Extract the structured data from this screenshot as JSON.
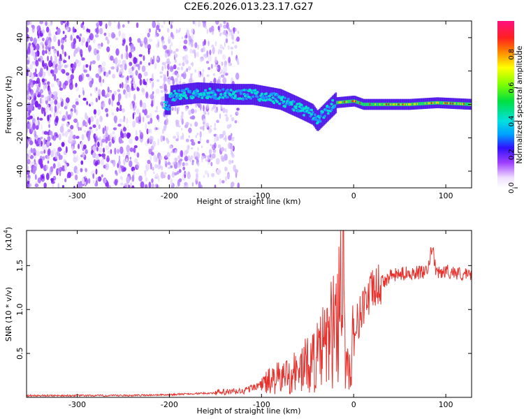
{
  "title": "C2E6.2026.013.23.17.G27",
  "chart_data": [
    {
      "type": "heatmap",
      "title": "C2E6.2026.013.23.17.G27",
      "xlabel": "Height of straight line (km)",
      "ylabel": "Frequency (Hz)",
      "xlim": [
        -355,
        128
      ],
      "ylim": [
        -50,
        50
      ],
      "xticks": [
        -300,
        -200,
        -100,
        0,
        100
      ],
      "yticks": [
        -40,
        -20,
        0,
        20,
        40
      ],
      "colorbar": {
        "label": "Normalized spectral amplitude",
        "range": [
          0,
          1
        ],
        "ticks": [
          "0.0",
          "0.2",
          "0.4",
          "0.6",
          "0.8"
        ]
      },
      "ridge": {
        "description_points_km": [
          -200,
          -170,
          -140,
          -110,
          -80,
          -60,
          -45,
          -40,
          -20,
          0,
          10,
          30,
          60,
          90,
          128
        ],
        "center_hz": [
          5,
          7,
          6,
          6,
          3,
          -2,
          -6,
          -10,
          1,
          2,
          0,
          0,
          0,
          1,
          0
        ]
      }
    },
    {
      "type": "line",
      "xlabel": "Height of straight line (km)",
      "ylabel": "SNR (10 * v/v)",
      "yscale_note": "(x10",
      "yscale_exp": "4",
      "xlim": [
        -355,
        128
      ],
      "ylim": [
        0,
        1.9
      ],
      "xticks": [
        -300,
        -200,
        -100,
        0,
        100
      ],
      "yticks": [
        0.5,
        1.0,
        1.5
      ],
      "ytick_labels": [
        "0.5",
        "1.0",
        "1.5"
      ],
      "series": [
        {
          "name": "SNR",
          "color": "#e8312c",
          "x": [
            -355,
            -300,
            -250,
            -200,
            -180,
            -150,
            -120,
            -100,
            -80,
            -60,
            -40,
            -30,
            -20,
            -15,
            -12,
            -10,
            -5,
            0,
            10,
            20,
            30,
            40,
            60,
            80,
            85,
            90,
            100,
            110,
            128
          ],
          "y": [
            0.02,
            0.02,
            0.02,
            0.03,
            0.04,
            0.05,
            0.07,
            0.15,
            0.22,
            0.3,
            0.45,
            0.6,
            0.8,
            1.2,
            1.9,
            0.6,
            0.3,
            0.7,
            1.05,
            1.2,
            1.3,
            1.38,
            1.42,
            1.42,
            1.72,
            1.4,
            1.44,
            1.42,
            1.38
          ]
        }
      ]
    }
  ]
}
